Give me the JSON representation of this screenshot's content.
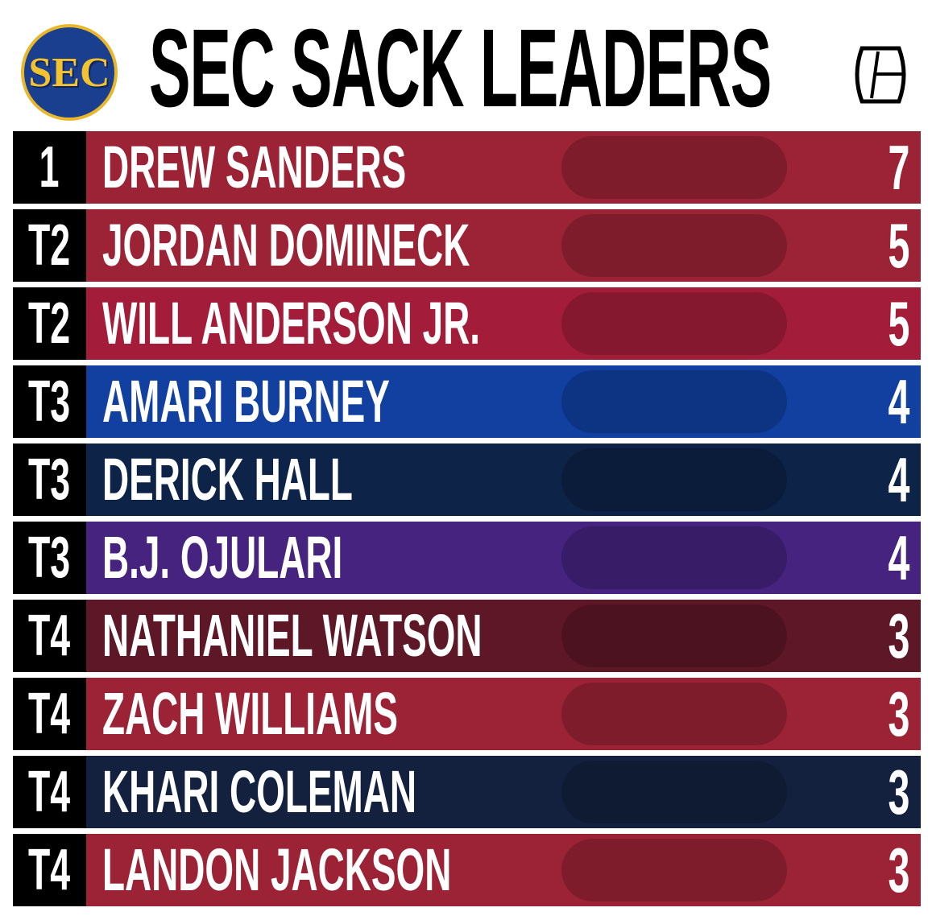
{
  "header": {
    "logo": "SEC",
    "title": "SEC SACK LEADERS"
  },
  "rows": [
    {
      "rank": "1",
      "name": "DREW SANDERS",
      "sacks": 7,
      "color": "#9b2335"
    },
    {
      "rank": "T2",
      "name": "JORDAN DOMINECK",
      "sacks": 5,
      "color": "#9b2335"
    },
    {
      "rank": "T2",
      "name": "WILL ANDERSON JR.",
      "sacks": 5,
      "color": "#a31d3a"
    },
    {
      "rank": "T3",
      "name": "AMARI BURNEY",
      "sacks": 4,
      "color": "#1140a0"
    },
    {
      "rank": "T3",
      "name": "DERICK HALL",
      "sacks": 4,
      "color": "#0d2347"
    },
    {
      "rank": "T3",
      "name": "B.J. OJULARI",
      "sacks": 4,
      "color": "#45237e"
    },
    {
      "rank": "T4",
      "name": "NATHANIEL WATSON",
      "sacks": 3,
      "color": "#5e1727"
    },
    {
      "rank": "T4",
      "name": "ZACH WILLIAMS",
      "sacks": 3,
      "color": "#9b2335"
    },
    {
      "rank": "T4",
      "name": "KHARI COLEMAN",
      "sacks": 3,
      "color": "#13213f"
    },
    {
      "rank": "T4",
      "name": "LANDON JACKSON",
      "sacks": 3,
      "color": "#9b2335"
    }
  ]
}
